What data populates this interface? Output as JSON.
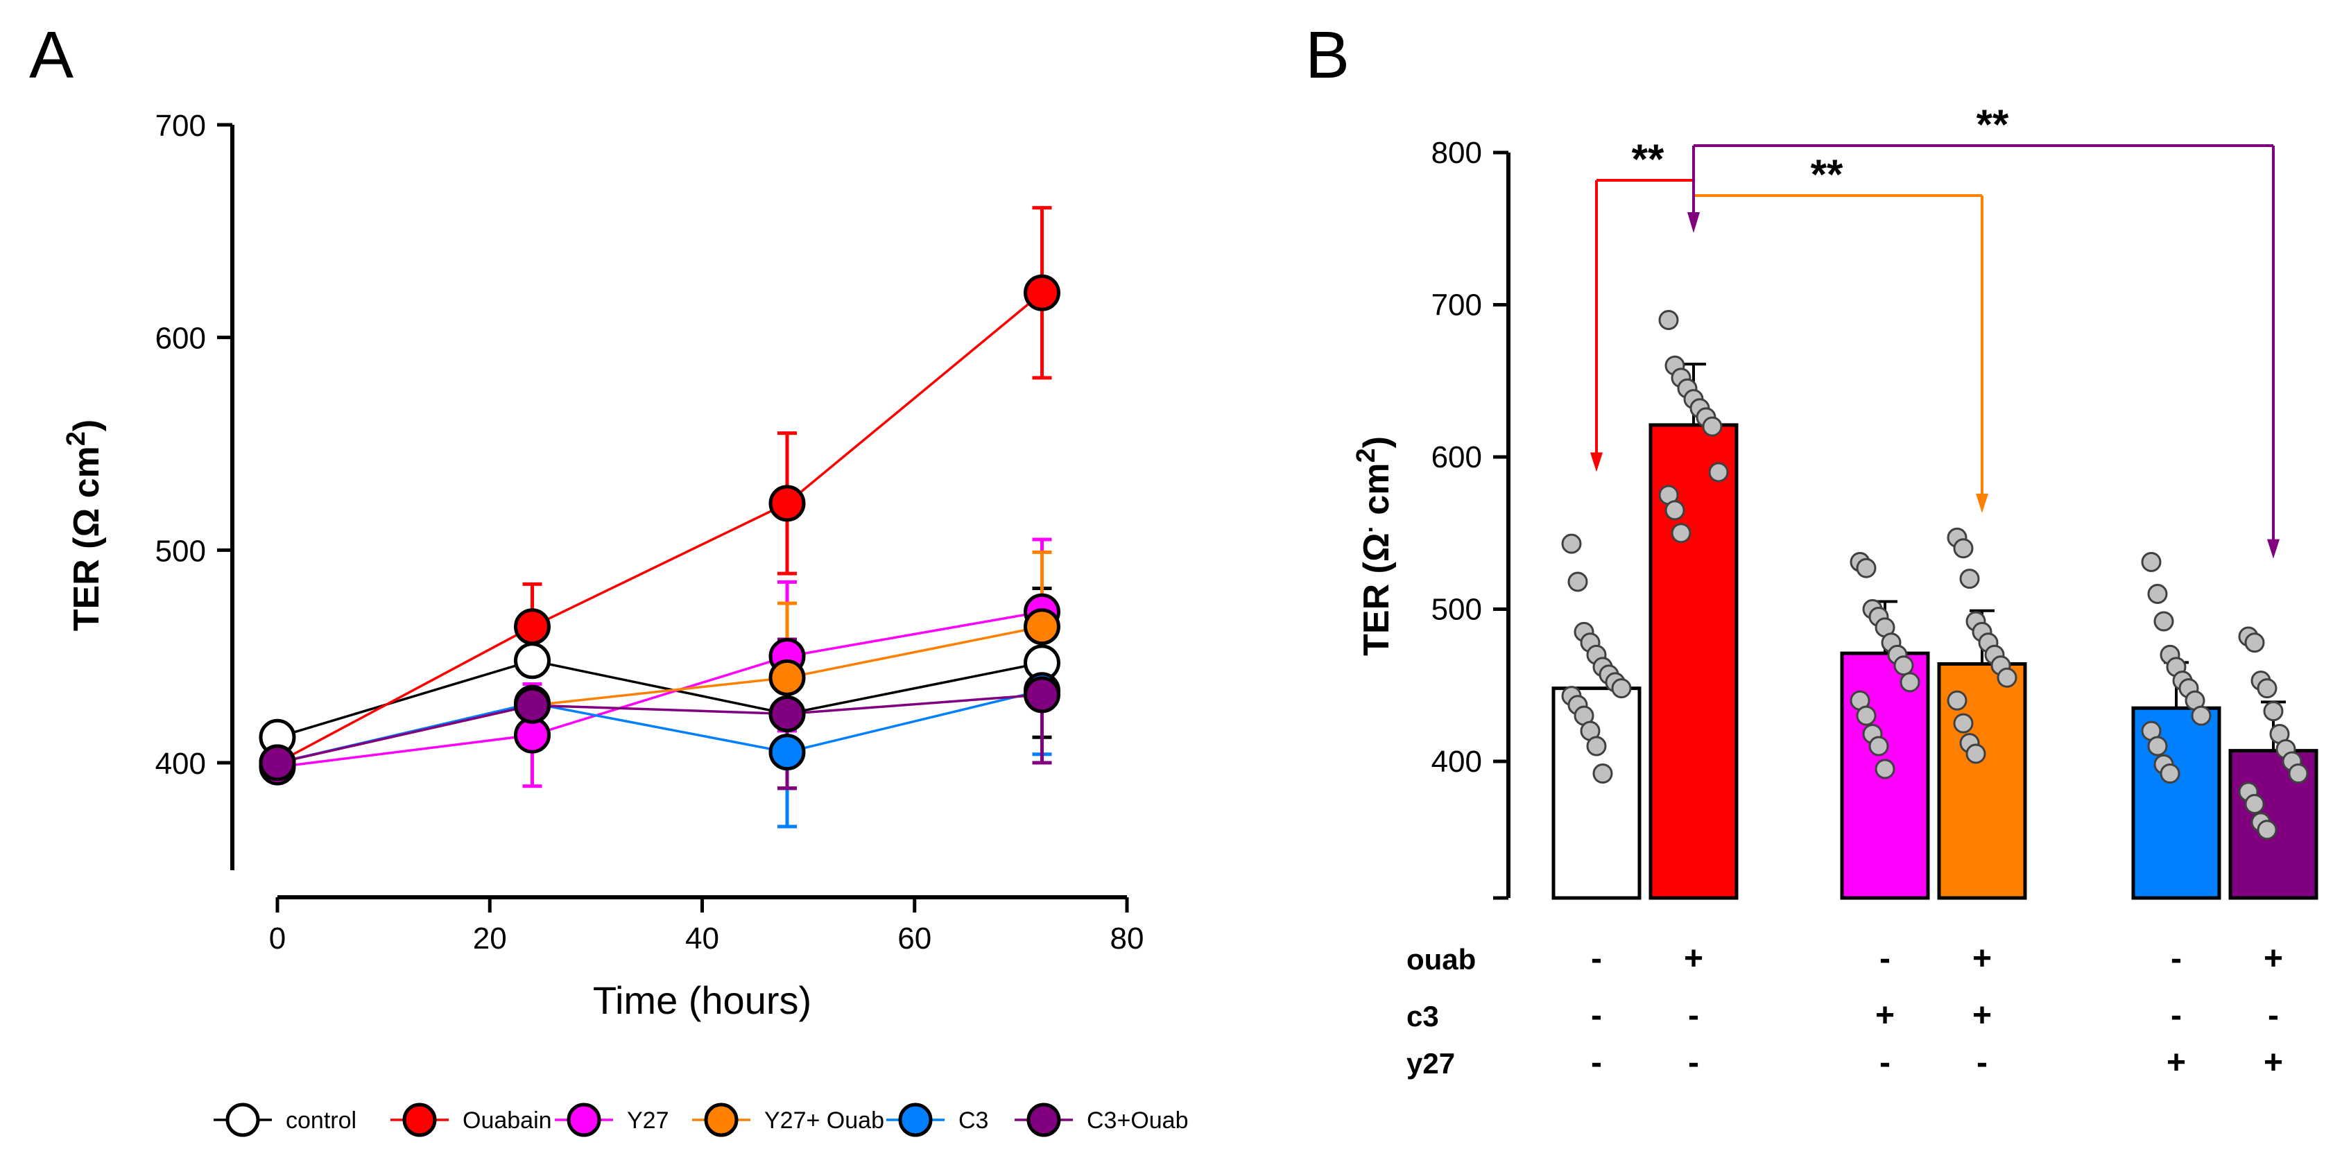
{
  "chart_data": [
    {
      "panel": "A",
      "type": "line",
      "xlabel": "Time (hours)",
      "ylabel": "TER (Ω cm²)",
      "ylabel_parts": {
        "main": "TER (Ω cm",
        "sup": "2",
        "close": ")"
      },
      "xlim": [
        0,
        80
      ],
      "ylim": [
        350,
        700
      ],
      "xticks": [
        "0",
        "20",
        "40",
        "60",
        "80"
      ],
      "yticks": [
        "400",
        "500",
        "600",
        "700"
      ],
      "x": [
        0,
        24,
        48,
        72
      ],
      "series": [
        {
          "name": "control",
          "color": "#ffffff",
          "line": "#000000",
          "values": [
            412,
            448,
            423,
            447
          ],
          "err": [
            0,
            0,
            35,
            35
          ]
        },
        {
          "name": "Ouabain",
          "color": "#ff0000",
          "line": "#ff0000",
          "values": [
            400,
            464,
            522,
            621
          ],
          "err": [
            0,
            20,
            33,
            40
          ]
        },
        {
          "name": "Y27",
          "color": "#ff00ff",
          "line": "#ff00ff",
          "values": [
            398,
            413,
            450,
            471
          ],
          "err": [
            0,
            24,
            35,
            34
          ]
        },
        {
          "name": "Y27+ Ouab",
          "color": "#ff8000",
          "line": "#ff8000",
          "values": [
            400,
            427,
            440,
            464
          ],
          "err": [
            0,
            0,
            35,
            35
          ]
        },
        {
          "name": "C3",
          "color": "#0080ff",
          "line": "#0080ff",
          "values": [
            400,
            428,
            405,
            434
          ],
          "err": [
            0,
            0,
            35,
            30
          ]
        },
        {
          "name": "C3+Ouab",
          "color": "#800080",
          "line": "#800080",
          "values": [
            400,
            427,
            423,
            432
          ],
          "err": [
            0,
            0,
            35,
            32
          ]
        }
      ]
    },
    {
      "panel": "B",
      "type": "bar",
      "ylabel": "TER (Ω · cm²)",
      "ylabel_parts": {
        "main": "TER (Ω",
        "dot": "·",
        "cm": " cm",
        "sup": "2",
        "close": ")"
      },
      "ylim": [
        310,
        800
      ],
      "yticks": [
        "400",
        "500",
        "600",
        "700",
        "800"
      ],
      "categories": [
        "control",
        "ouabain",
        "C3",
        "C3+ouab",
        "Y27",
        "Y27+ouab"
      ],
      "colors": [
        "#ffffff",
        "#ff0000",
        "#ff00ff",
        "#ff8000",
        "#0080ff",
        "#800080"
      ],
      "values": [
        448,
        621,
        471,
        464,
        435,
        407
      ],
      "err": [
        0,
        40,
        34,
        35,
        30,
        32
      ],
      "points": [
        [
          543,
          518,
          485,
          478,
          470,
          462,
          457,
          452,
          448,
          443,
          437,
          430,
          420,
          410,
          392
        ],
        [
          690,
          660,
          652,
          645,
          638,
          632,
          626,
          620,
          590,
          575,
          565,
          550
        ],
        [
          531,
          527,
          500,
          495,
          488,
          478,
          470,
          463,
          452,
          440,
          430,
          418,
          410,
          395
        ],
        [
          547,
          540,
          520,
          492,
          485,
          478,
          470,
          463,
          455,
          440,
          425,
          412,
          405
        ],
        [
          531,
          510,
          492,
          470,
          462,
          453,
          448,
          440,
          430,
          420,
          410,
          398,
          392
        ],
        [
          482,
          478,
          453,
          448,
          433,
          418,
          408,
          400,
          392,
          380,
          372,
          360,
          355
        ]
      ],
      "significance": [
        {
          "label": "**",
          "from": 1,
          "to": 0,
          "color": "#ff0000"
        },
        {
          "label": "**",
          "from": 1,
          "to": 3,
          "color": "#ff8000"
        },
        {
          "label": "**",
          "from": 1,
          "to": 5,
          "color": "#800080"
        }
      ],
      "conditions": [
        {
          "name": "ouab",
          "values": [
            "-",
            "+",
            "-",
            "+",
            "-",
            "+"
          ]
        },
        {
          "name": "c3",
          "values": [
            "-",
            "-",
            "+",
            "+",
            "-",
            "-"
          ]
        },
        {
          "name": "y27",
          "values": [
            "-",
            "-",
            "-",
            "-",
            "+",
            "+"
          ]
        }
      ]
    }
  ],
  "panel_labels": {
    "a": "A",
    "b": "B"
  }
}
